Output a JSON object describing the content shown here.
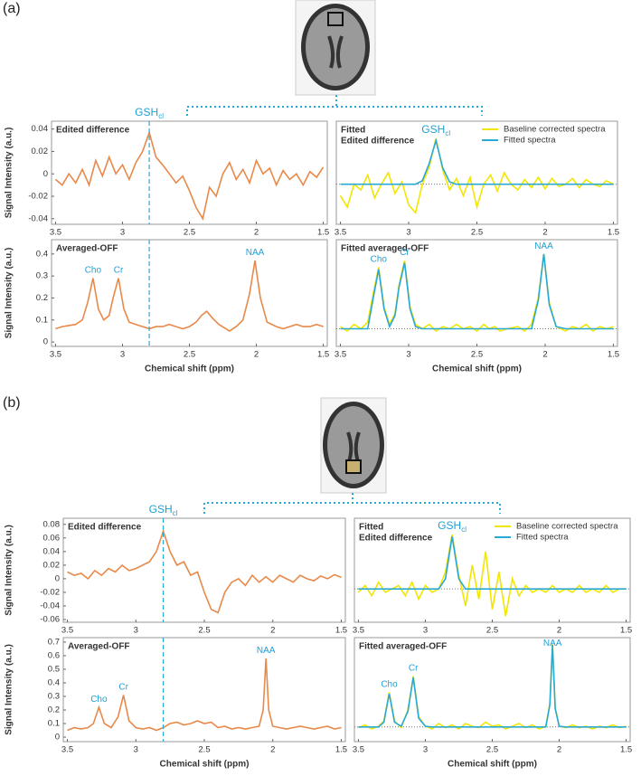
{
  "figure_labels": [
    "(a)",
    "(b)"
  ],
  "chart_data": [
    {
      "type": "line",
      "title": "Edited difference",
      "ylabel": "Signal Intensity (a.u.)",
      "x": [
        3.5,
        3.45,
        3.4,
        3.35,
        3.3,
        3.25,
        3.2,
        3.15,
        3.1,
        3.05,
        3,
        2.95,
        2.9,
        2.85,
        2.8,
        2.75,
        2.7,
        2.65,
        2.6,
        2.55,
        2.5,
        2.45,
        2.4,
        2.35,
        2.3,
        2.25,
        2.2,
        2.15,
        2.1,
        2.05,
        2,
        1.95,
        1.9,
        1.85,
        1.8,
        1.75,
        1.7,
        1.65,
        1.6,
        1.55,
        1.5
      ],
      "series": [
        {
          "color": "#e8894a",
          "values": [
            -0.005,
            -0.01,
            0,
            -0.008,
            0.004,
            -0.01,
            0.012,
            -0.002,
            0.015,
            0,
            0.008,
            -0.005,
            0.01,
            0.02,
            0.037,
            0.015,
            0.008,
            0,
            -0.008,
            -0.002,
            -0.015,
            -0.03,
            -0.04,
            -0.012,
            -0.02,
            0,
            0.01,
            -0.005,
            0.004,
            -0.008,
            0.012,
            0,
            0.005,
            -0.01,
            0.003,
            -0.005,
            0,
            -0.01,
            0.002,
            -0.003,
            0.006
          ]
        }
      ],
      "xlim": [
        3.53,
        1.47
      ],
      "ylim": [
        -0.045,
        0.047
      ],
      "xticks": [
        3.5,
        3,
        2.5,
        2,
        1.5
      ],
      "yticks": [
        0.04,
        0.02,
        0,
        -0.02,
        -0.04
      ],
      "vline": 2.8,
      "annotations": [
        {
          "text": "GSH",
          "sub": "cl"
        }
      ]
    },
    {
      "type": "line",
      "title": "Fitted",
      "subtitle": "Edited difference",
      "legend": "upper right",
      "x": [
        3.5,
        3.45,
        3.4,
        3.35,
        3.3,
        3.25,
        3.2,
        3.15,
        3.1,
        3.05,
        3,
        2.95,
        2.9,
        2.85,
        2.8,
        2.75,
        2.7,
        2.65,
        2.6,
        2.55,
        2.5,
        2.45,
        2.4,
        2.35,
        2.3,
        2.25,
        2.2,
        2.15,
        2.1,
        2.05,
        2,
        1.95,
        1.9,
        1.85,
        1.8,
        1.75,
        1.7,
        1.65,
        1.6,
        1.55,
        1.5
      ],
      "series": [
        {
          "name": "Baseline corrected spectra",
          "color": "#f2e600",
          "values": [
            -0.01,
            -0.02,
            0,
            -0.005,
            0.008,
            -0.012,
            0,
            0.01,
            -0.008,
            0.002,
            -0.018,
            -0.025,
            0,
            0.015,
            0.04,
            0.012,
            -0.005,
            0.005,
            -0.01,
            0.006,
            -0.02,
            0,
            0.008,
            -0.006,
            0.01,
            0,
            -0.005,
            0.004,
            -0.003,
            0.006,
            -0.004,
            0.005,
            -0.002,
            0,
            0.005,
            -0.003,
            0.004,
            0,
            -0.002,
            0.003,
            0
          ]
        },
        {
          "name": "Fitted spectra",
          "color": "#29a9d6",
          "values": [
            0,
            0,
            0,
            0,
            0,
            0,
            0,
            0,
            0,
            0,
            0,
            0,
            0.003,
            0.018,
            0.038,
            0.014,
            0.002,
            0,
            0,
            0,
            0,
            0,
            0,
            0,
            0,
            0,
            0,
            0,
            0,
            0,
            0,
            0,
            0,
            0,
            0,
            0,
            0,
            0,
            0,
            0,
            0
          ]
        }
      ],
      "xlim": [
        3.53,
        1.47
      ],
      "ylim": [
        -0.035,
        0.055
      ],
      "xticks": [
        3.5,
        3,
        2.5,
        2,
        1.5
      ],
      "hline": 0,
      "annotations": [
        {
          "text": "GSH",
          "sub": "cl",
          "x": 2.8
        }
      ]
    },
    {
      "type": "line",
      "title": "Averaged-OFF",
      "ylabel": "Signal Intensity (a.u.)",
      "xlabel": "Chemical shift (ppm)",
      "x": [
        3.5,
        3.45,
        3.4,
        3.35,
        3.3,
        3.26,
        3.22,
        3.18,
        3.14,
        3.1,
        3.07,
        3.03,
        2.99,
        2.95,
        2.9,
        2.85,
        2.8,
        2.75,
        2.7,
        2.65,
        2.6,
        2.55,
        2.5,
        2.45,
        2.41,
        2.37,
        2.33,
        2.28,
        2.2,
        2.15,
        2.1,
        2.05,
        2.01,
        1.97,
        1.92,
        1.85,
        1.8,
        1.75,
        1.7,
        1.65,
        1.6,
        1.55,
        1.5
      ],
      "series": [
        {
          "color": "#e8894a",
          "values": [
            0.06,
            0.07,
            0.075,
            0.08,
            0.1,
            0.18,
            0.29,
            0.15,
            0.1,
            0.12,
            0.2,
            0.29,
            0.15,
            0.09,
            0.08,
            0.07,
            0.06,
            0.07,
            0.07,
            0.08,
            0.07,
            0.06,
            0.07,
            0.09,
            0.12,
            0.14,
            0.11,
            0.08,
            0.05,
            0.07,
            0.1,
            0.22,
            0.37,
            0.2,
            0.09,
            0.07,
            0.06,
            0.07,
            0.08,
            0.07,
            0.07,
            0.08,
            0.07
          ]
        }
      ],
      "xlim": [
        3.53,
        1.47
      ],
      "ylim": [
        -0.02,
        0.465
      ],
      "xticks": [
        3.5,
        3,
        2.5,
        2,
        1.5
      ],
      "yticks": [
        0.4,
        0.3,
        0.2,
        0.1,
        0
      ],
      "vline": 2.8,
      "annotations": [
        {
          "text": "Cho",
          "x": 3.22
        },
        {
          "text": "Cr",
          "x": 3.03
        },
        {
          "text": "NAA",
          "x": 2.01
        }
      ]
    },
    {
      "type": "line",
      "title": "Fitted averaged-OFF",
      "xlabel": "Chemical shift (ppm)",
      "x": [
        3.5,
        3.45,
        3.4,
        3.35,
        3.3,
        3.26,
        3.22,
        3.18,
        3.14,
        3.1,
        3.07,
        3.03,
        2.99,
        2.95,
        2.9,
        2.85,
        2.8,
        2.75,
        2.7,
        2.65,
        2.6,
        2.55,
        2.5,
        2.45,
        2.41,
        2.37,
        2.33,
        2.28,
        2.2,
        2.15,
        2.1,
        2.05,
        2.01,
        1.97,
        1.92,
        1.85,
        1.8,
        1.75,
        1.7,
        1.65,
        1.6,
        1.55,
        1.5
      ],
      "series": [
        {
          "color": "#f2e600",
          "values": [
            0.07,
            0.05,
            0.08,
            0.06,
            0.09,
            0.22,
            0.34,
            0.16,
            0.08,
            0.13,
            0.26,
            0.37,
            0.16,
            0.08,
            0.06,
            0.08,
            0.05,
            0.07,
            0.06,
            0.08,
            0.06,
            0.07,
            0.05,
            0.08,
            0.06,
            0.07,
            0.05,
            0.06,
            0.07,
            0.05,
            0.08,
            0.2,
            0.4,
            0.18,
            0.07,
            0.05,
            0.07,
            0.06,
            0.08,
            0.05,
            0.07,
            0.06,
            0.07
          ]
        },
        {
          "color": "#29a9d6",
          "values": [
            0.06,
            0.06,
            0.06,
            0.06,
            0.06,
            0.2,
            0.33,
            0.15,
            0.07,
            0.12,
            0.25,
            0.36,
            0.15,
            0.07,
            0.06,
            0.06,
            0.06,
            0.06,
            0.06,
            0.06,
            0.06,
            0.06,
            0.06,
            0.06,
            0.06,
            0.06,
            0.06,
            0.06,
            0.06,
            0.06,
            0.06,
            0.19,
            0.4,
            0.17,
            0.07,
            0.06,
            0.06,
            0.06,
            0.06,
            0.06,
            0.06,
            0.06,
            0.06
          ]
        }
      ],
      "xlim": [
        3.53,
        1.47
      ],
      "ylim": [
        -0.02,
        0.465
      ],
      "xticks": [
        3.5,
        3,
        2.5,
        2,
        1.5
      ],
      "hline": 0.06,
      "annotations": [
        {
          "text": "Cho",
          "x": 3.22
        },
        {
          "text": "Cr",
          "x": 3.03
        },
        {
          "text": "NAA",
          "x": 2.01
        }
      ]
    },
    {
      "type": "line",
      "title": "Edited difference",
      "ylabel": "Signal Intensity (a.u.)",
      "x": [
        3.5,
        3.45,
        3.4,
        3.35,
        3.3,
        3.25,
        3.2,
        3.15,
        3.1,
        3.05,
        3,
        2.95,
        2.9,
        2.85,
        2.8,
        2.75,
        2.7,
        2.65,
        2.6,
        2.55,
        2.5,
        2.45,
        2.4,
        2.35,
        2.3,
        2.25,
        2.2,
        2.15,
        2.1,
        2.05,
        2,
        1.95,
        1.9,
        1.85,
        1.8,
        1.75,
        1.7,
        1.65,
        1.6,
        1.55,
        1.5
      ],
      "series": [
        {
          "color": "#e8894a",
          "values": [
            0.01,
            0.005,
            0.008,
            0,
            0.012,
            0.005,
            0.015,
            0.01,
            0.02,
            0.012,
            0.015,
            0.02,
            0.025,
            0.04,
            0.07,
            0.04,
            0.02,
            0.025,
            0.005,
            0.01,
            -0.02,
            -0.045,
            -0.05,
            -0.02,
            -0.005,
            0,
            -0.01,
            0.005,
            -0.005,
            0.003,
            -0.005,
            0.005,
            0,
            -0.005,
            0.005,
            0,
            -0.003,
            0.004,
            0,
            0.006,
            0.002
          ]
        }
      ],
      "xlim": [
        3.53,
        1.47
      ],
      "ylim": [
        -0.064,
        0.089
      ],
      "xticks": [
        3.5,
        3,
        2.5,
        2,
        1.5
      ],
      "yticks": [
        0.08,
        0.06,
        0.04,
        0.02,
        0,
        -0.02,
        -0.04,
        -0.06
      ],
      "vline": 2.8,
      "annotations": [
        {
          "text": "GSH",
          "sub": "cl"
        }
      ]
    },
    {
      "type": "line",
      "title": "Fitted",
      "subtitle": "Edited difference",
      "legend": "upper right",
      "x": [
        3.5,
        3.45,
        3.4,
        3.35,
        3.3,
        3.25,
        3.2,
        3.15,
        3.1,
        3.05,
        3,
        2.95,
        2.9,
        2.85,
        2.8,
        2.75,
        2.7,
        2.65,
        2.6,
        2.55,
        2.5,
        2.45,
        2.4,
        2.35,
        2.3,
        2.25,
        2.2,
        2.15,
        2.1,
        2.05,
        2,
        1.95,
        1.9,
        1.85,
        1.8,
        1.75,
        1.7,
        1.65,
        1.6,
        1.55,
        1.5
      ],
      "series": [
        {
          "name": "Baseline corrected spectra",
          "color": "#f2e600",
          "values": [
            -0.02,
            -0.01,
            -0.025,
            -0.005,
            -0.02,
            -0.015,
            -0.01,
            -0.025,
            -0.005,
            -0.03,
            -0.01,
            -0.02,
            -0.015,
            0.01,
            0.065,
            0.005,
            -0.04,
            0.02,
            -0.03,
            0.04,
            -0.045,
            0.01,
            -0.055,
            0,
            -0.025,
            -0.01,
            -0.02,
            -0.015,
            -0.02,
            -0.01,
            -0.02,
            -0.015,
            -0.02,
            -0.01,
            -0.02,
            -0.015,
            -0.02,
            -0.01,
            -0.02,
            -0.015,
            -0.015
          ]
        },
        {
          "name": "Fitted spectra",
          "color": "#29a9d6",
          "values": [
            -0.015,
            -0.015,
            -0.015,
            -0.015,
            -0.015,
            -0.015,
            -0.015,
            -0.015,
            -0.015,
            -0.015,
            -0.015,
            -0.015,
            -0.015,
            0,
            0.062,
            0,
            -0.015,
            -0.015,
            -0.015,
            -0.015,
            -0.015,
            -0.015,
            -0.015,
            -0.015,
            -0.015,
            -0.015,
            -0.015,
            -0.015,
            -0.015,
            -0.015,
            -0.015,
            -0.015,
            -0.015,
            -0.015,
            -0.015,
            -0.015,
            -0.015,
            -0.015,
            -0.015,
            -0.015,
            -0.015
          ]
        }
      ],
      "xlim": [
        3.53,
        1.47
      ],
      "ylim": [
        -0.064,
        0.089
      ],
      "xticks": [
        3.5,
        3,
        2.5,
        2,
        1.5
      ],
      "hline": -0.015,
      "annotations": [
        {
          "text": "GSH",
          "sub": "cl",
          "x": 2.8
        }
      ]
    },
    {
      "type": "line",
      "title": "Averaged-OFF",
      "ylabel": "Signal Intensity (a.u.)",
      "xlabel": "Chemical shift (ppm)",
      "x": [
        3.5,
        3.45,
        3.4,
        3.35,
        3.31,
        3.27,
        3.23,
        3.18,
        3.13,
        3.09,
        3.05,
        3,
        2.95,
        2.9,
        2.85,
        2.8,
        2.75,
        2.7,
        2.65,
        2.6,
        2.55,
        2.5,
        2.45,
        2.4,
        2.35,
        2.3,
        2.25,
        2.2,
        2.15,
        2.1,
        2.07,
        2.05,
        2.03,
        2,
        1.95,
        1.9,
        1.85,
        1.8,
        1.75,
        1.7,
        1.65,
        1.6,
        1.55,
        1.5
      ],
      "series": [
        {
          "color": "#e8894a",
          "values": [
            0.05,
            0.07,
            0.06,
            0.07,
            0.1,
            0.22,
            0.1,
            0.07,
            0.15,
            0.31,
            0.12,
            0.07,
            0.06,
            0.07,
            0.05,
            0.07,
            0.1,
            0.11,
            0.09,
            0.1,
            0.12,
            0.1,
            0.11,
            0.07,
            0.08,
            0.06,
            0.07,
            0.06,
            0.07,
            0.08,
            0.2,
            0.58,
            0.2,
            0.08,
            0.07,
            0.06,
            0.07,
            0.08,
            0.07,
            0.06,
            0.07,
            0.08,
            0.06,
            0.07
          ]
        }
      ],
      "xlim": [
        3.53,
        1.47
      ],
      "ylim": [
        -0.033,
        0.733
      ],
      "xticks": [
        3.5,
        3,
        2.5,
        2,
        1.5
      ],
      "yticks": [
        0.7,
        0.6,
        0.5,
        0.4,
        0.3,
        0.2,
        0.1,
        0
      ],
      "vline": 2.8,
      "annotations": [
        {
          "text": "Cho",
          "x": 3.27
        },
        {
          "text": "Cr",
          "x": 3.09
        },
        {
          "text": "NAA",
          "x": 2.05
        }
      ]
    },
    {
      "type": "line",
      "title": "Fitted averaged-OFF",
      "xlabel": "Chemical shift (ppm)",
      "x": [
        3.5,
        3.45,
        3.4,
        3.35,
        3.31,
        3.27,
        3.23,
        3.18,
        3.13,
        3.09,
        3.05,
        3,
        2.95,
        2.9,
        2.85,
        2.8,
        2.75,
        2.7,
        2.65,
        2.6,
        2.55,
        2.5,
        2.45,
        2.4,
        2.35,
        2.3,
        2.25,
        2.2,
        2.15,
        2.1,
        2.07,
        2.05,
        2.03,
        2,
        1.95,
        1.9,
        1.85,
        1.8,
        1.75,
        1.7,
        1.65,
        1.6,
        1.55,
        1.5
      ],
      "series": [
        {
          "color": "#f2e600",
          "values": [
            0.07,
            0.09,
            0.06,
            0.08,
            0.12,
            0.33,
            0.12,
            0.07,
            0.2,
            0.45,
            0.15,
            0.08,
            0.06,
            0.1,
            0.07,
            0.09,
            0.06,
            0.1,
            0.08,
            0.07,
            0.11,
            0.08,
            0.09,
            0.06,
            0.08,
            0.1,
            0.07,
            0.09,
            0.06,
            0.08,
            0.25,
            0.69,
            0.22,
            0.08,
            0.07,
            0.09,
            0.07,
            0.08,
            0.06,
            0.08,
            0.07,
            0.09,
            0.07,
            0.08
          ]
        },
        {
          "color": "#29a9d6",
          "values": [
            0.075,
            0.075,
            0.075,
            0.075,
            0.11,
            0.32,
            0.11,
            0.08,
            0.19,
            0.44,
            0.14,
            0.08,
            0.075,
            0.075,
            0.075,
            0.075,
            0.075,
            0.075,
            0.075,
            0.075,
            0.075,
            0.075,
            0.075,
            0.075,
            0.075,
            0.075,
            0.075,
            0.075,
            0.075,
            0.075,
            0.24,
            0.68,
            0.21,
            0.08,
            0.075,
            0.075,
            0.075,
            0.075,
            0.075,
            0.075,
            0.075,
            0.075,
            0.075,
            0.075
          ]
        }
      ],
      "xlim": [
        3.53,
        1.47
      ],
      "ylim": [
        -0.033,
        0.733
      ],
      "xticks": [
        3.5,
        3,
        2.5,
        2,
        1.5
      ],
      "hline": 0.075,
      "annotations": [
        {
          "text": "Cho",
          "x": 3.27
        },
        {
          "text": "Cr",
          "x": 3.09
        },
        {
          "text": "NAA",
          "x": 2.05
        }
      ]
    }
  ]
}
